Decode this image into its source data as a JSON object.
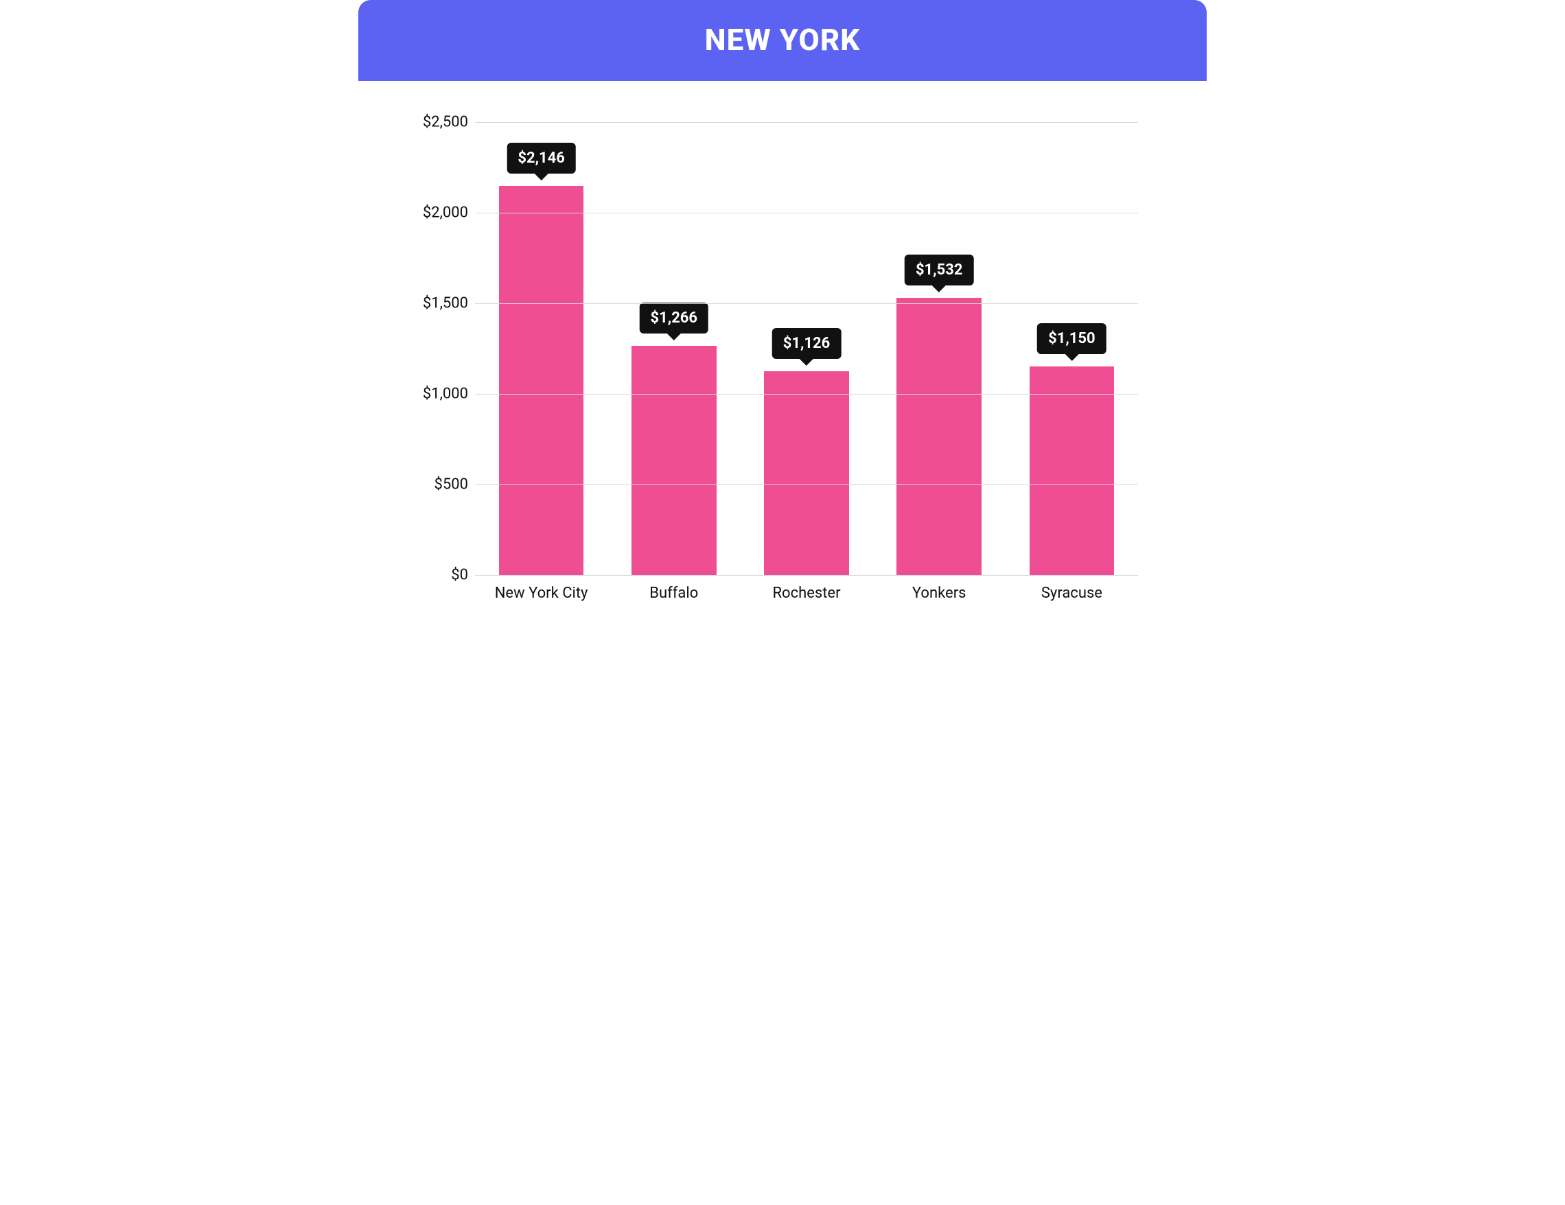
{
  "header": {
    "title": "NEW YORK",
    "background_color": "#5c62f2",
    "text_color": "#ffffff",
    "fontsize": 44,
    "font_weight": 800
  },
  "chart": {
    "type": "bar",
    "categories": [
      "New York City",
      "Buffalo",
      "Rochester",
      "Yonkers",
      "Syracuse"
    ],
    "values": [
      2146,
      1266,
      1126,
      1532,
      1150
    ],
    "value_labels": [
      "$2,146",
      "$1,266",
      "$1,126",
      "$1,532",
      "$1,150"
    ],
    "bar_color": "#f04e92",
    "bar_width": 0.64,
    "ylim": [
      0,
      2500
    ],
    "ytick_step": 500,
    "ytick_labels": [
      "$0",
      "$500",
      "$1,000",
      "$1,500",
      "$2,000",
      "$2,500"
    ],
    "grid_color": "#d9d9d9",
    "background_color": "#ffffff",
    "tooltip_bg": "#111111",
    "tooltip_text_color": "#ffffff",
    "tooltip_fontsize": 22,
    "axis_label_fontsize": 22,
    "axis_label_color": "#111111"
  }
}
